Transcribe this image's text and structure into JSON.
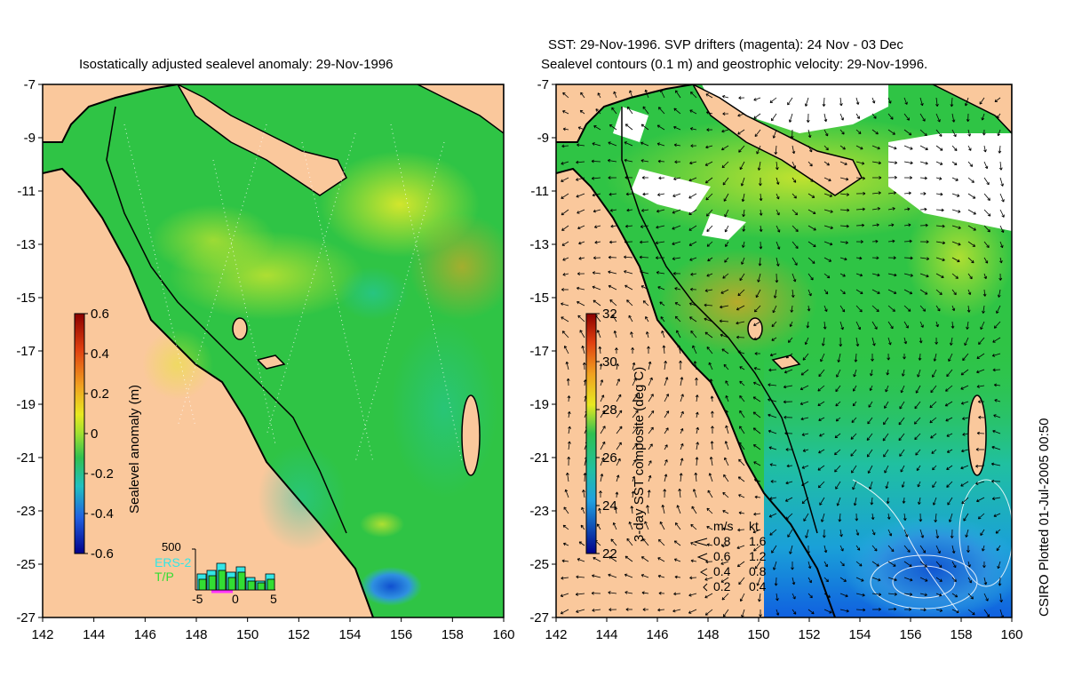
{
  "left_panel": {
    "title": "Isostatically adjusted sealevel anomaly: 29-Nov-1996",
    "colorbar": {
      "label": "Sealevel anomaly (m)",
      "ticks": [
        "0.6",
        "0.4",
        "0.2",
        "0",
        "-0.2",
        "-0.4",
        "-0.6"
      ],
      "range": [
        -0.6,
        0.6
      ]
    },
    "histogram": {
      "y_max_label": "500",
      "x_ticks": [
        "-5",
        "0",
        "5"
      ],
      "legend": [
        {
          "name": "ERS-2",
          "color": "#33e6e6"
        },
        {
          "name": "T/P",
          "color": "#33dd33"
        }
      ]
    }
  },
  "right_panel": {
    "title_line1": "SST: 29-Nov-1996. SVP drifters (magenta): 24 Nov - 03 Dec",
    "title_line2": "Sealevel contours (0.1 m) and geostrophic velocity: 29-Nov-1996.",
    "colorbar": {
      "label": "3-day SST composite (deg C)",
      "ticks": [
        "32",
        "30",
        "28",
        "26",
        "24",
        "22"
      ],
      "range": [
        22,
        32
      ]
    },
    "velocity_key": {
      "header_ms": "m/s",
      "header_kt": "kt",
      "rows": [
        {
          "ms": "0.8",
          "kt": "1.6"
        },
        {
          "ms": "0.6",
          "kt": "1.2"
        },
        {
          "ms": "0.4",
          "kt": "0.8"
        },
        {
          "ms": "0.2",
          "kt": "0.4"
        }
      ]
    }
  },
  "axes": {
    "lat_ticks": [
      "-7",
      "-9",
      "-11",
      "-13",
      "-15",
      "-17",
      "-19",
      "-21",
      "-23",
      "-25",
      "-27"
    ],
    "lon_ticks": [
      "142",
      "144",
      "146",
      "148",
      "150",
      "152",
      "154",
      "156",
      "158",
      "160"
    ],
    "lat_range": [
      -27,
      -7
    ],
    "lon_range": [
      142,
      160
    ]
  },
  "credit": "CSIRO Plotted 01-Jul-2005 00:50",
  "colors": {
    "land": "#fac89c",
    "ocean_base": "#2fc445",
    "coast": "#000000"
  }
}
